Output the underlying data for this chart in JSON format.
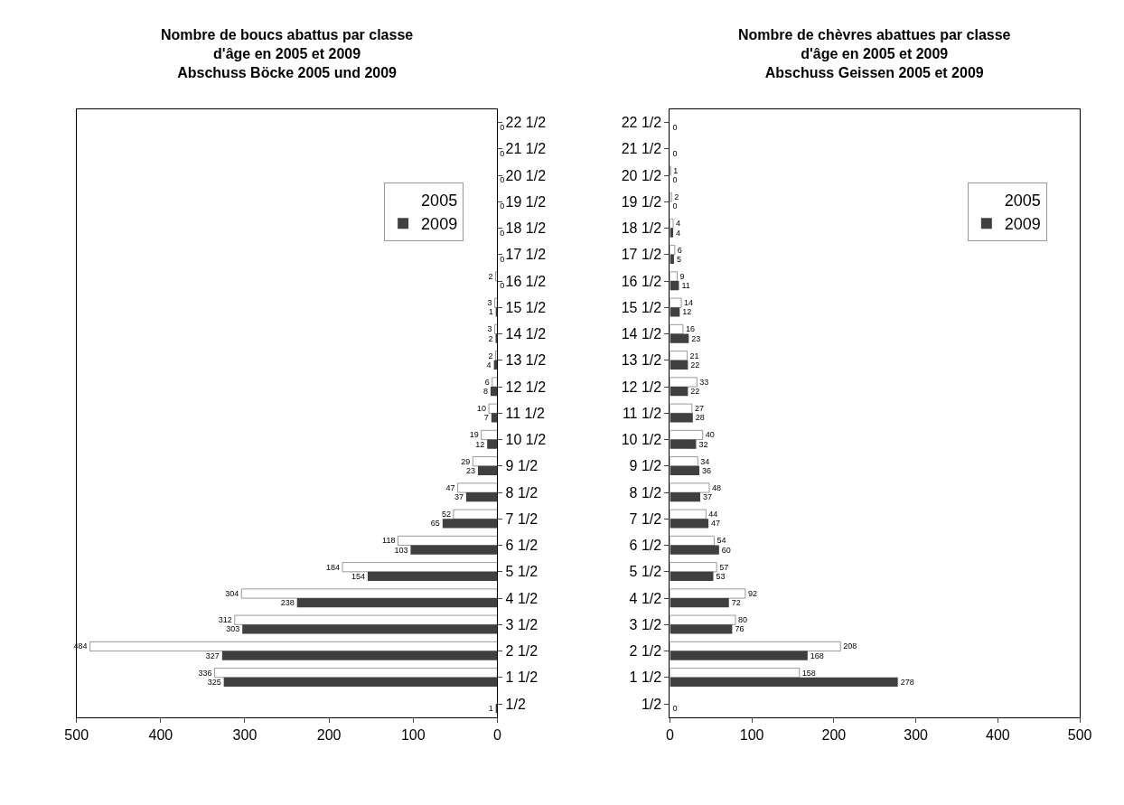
{
  "chart_data": [
    {
      "type": "bar",
      "title": "Nombre de boucs abattus par classe\nd'âge en 2005 et 2009\nAbschuss Böcke 2005 und 2009",
      "orientation": "horizontal",
      "categories": [
        "22 1/2",
        "21 1/2",
        "20 1/2",
        "19 1/2",
        "18 1/2",
        "17 1/2",
        "16 1/2",
        "15 1/2",
        "14 1/2",
        "13 1/2",
        "12 1/2",
        "11 1/2",
        "10 1/2",
        "9 1/2",
        "8 1/2",
        "7 1/2",
        "6 1/2",
        "5 1/2",
        "4 1/2",
        "3 1/2",
        "2 1/2",
        "1 1/2",
        "1/2"
      ],
      "series": [
        {
          "name": "2005",
          "color": "#ffffff",
          "values": [
            0,
            0,
            0,
            0,
            0,
            0,
            2,
            3,
            3,
            2,
            6,
            10,
            19,
            29,
            47,
            52,
            118,
            184,
            304,
            312,
            484,
            336,
            0
          ],
          "value_labels": [
            null,
            null,
            null,
            null,
            null,
            null,
            "2",
            "3",
            "3",
            "2",
            "6",
            "10",
            "19",
            "29",
            "47",
            "52",
            "118",
            "184",
            "304",
            "312",
            "484",
            "336",
            null
          ]
        },
        {
          "name": "2009",
          "color": "#404040",
          "values": [
            0,
            0,
            0,
            0,
            0,
            0,
            0,
            1,
            2,
            4,
            8,
            7,
            12,
            23,
            37,
            65,
            103,
            154,
            238,
            303,
            327,
            325,
            1
          ],
          "value_labels": [
            "0",
            "0",
            "0",
            "0",
            "0",
            "0",
            "0",
            "1",
            "2",
            "4",
            "8",
            "7",
            "12",
            "23",
            "37",
            "65",
            "103",
            "154",
            "238",
            "303",
            "327",
            "325",
            "1"
          ]
        }
      ],
      "xlim": [
        500,
        0
      ],
      "xticks": [
        500,
        400,
        300,
        200,
        100,
        0
      ],
      "legend": "top right"
    },
    {
      "type": "bar",
      "title": "Nombre de chèvres abattues par classe\nd'âge en 2005 et 2009\nAbschuss Geissen 2005 et 2009",
      "orientation": "horizontal",
      "categories": [
        "22 1/2",
        "21 1/2",
        "20 1/2",
        "19 1/2",
        "18 1/2",
        "17 1/2",
        "16 1/2",
        "15 1/2",
        "14 1/2",
        "13 1/2",
        "12 1/2",
        "11 1/2",
        "10 1/2",
        "9 1/2",
        "8 1/2",
        "7 1/2",
        "6 1/2",
        "5 1/2",
        "4 1/2",
        "3 1/2",
        "2 1/2",
        "1 1/2",
        "1/2"
      ],
      "series": [
        {
          "name": "2005",
          "color": "#ffffff",
          "values": [
            0,
            0,
            1,
            2,
            4,
            6,
            9,
            14,
            16,
            21,
            33,
            27,
            40,
            34,
            48,
            44,
            54,
            57,
            92,
            80,
            208,
            158,
            0
          ],
          "value_labels": [
            null,
            null,
            "1",
            "2",
            "4",
            "6",
            "9",
            "14",
            "16",
            "21",
            "33",
            "27",
            "40",
            "34",
            "48",
            "44",
            "54",
            "57",
            "92",
            "80",
            "208",
            "158",
            null
          ]
        },
        {
          "name": "2009",
          "color": "#404040",
          "values": [
            0,
            0,
            0,
            0,
            4,
            5,
            11,
            12,
            23,
            22,
            22,
            28,
            32,
            36,
            37,
            47,
            60,
            53,
            72,
            76,
            168,
            278,
            0
          ],
          "value_labels": [
            "0",
            "0",
            "0",
            "0",
            "4",
            "5",
            "11",
            "12",
            "23",
            "22",
            "22",
            "28",
            "32",
            "36",
            "37",
            "47",
            "60",
            "53",
            "72",
            "76",
            "168",
            "278",
            "0"
          ]
        }
      ],
      "xlim": [
        0,
        500
      ],
      "xticks": [
        0,
        100,
        200,
        300,
        400,
        500
      ],
      "legend": "top right"
    }
  ]
}
